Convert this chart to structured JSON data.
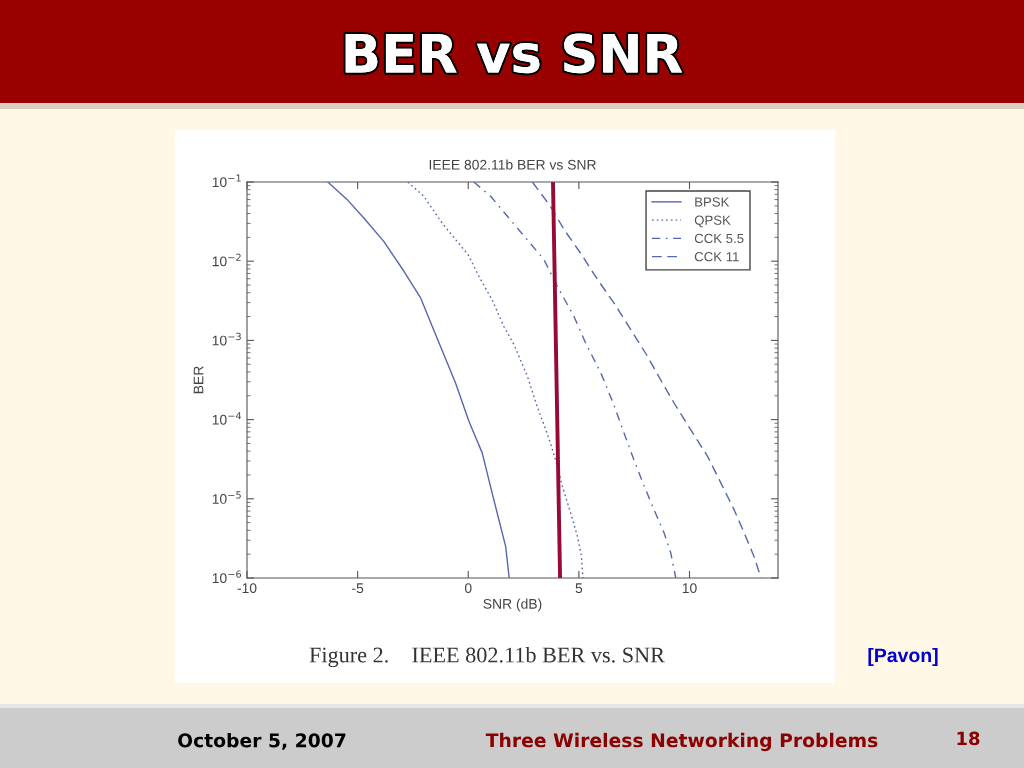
{
  "chart_data": {
    "type": "line",
    "title": "BER vs SNR",
    "subtitle": "IEEE 802.11b BER vs SNR",
    "xlabel": "SNR (dB)",
    "ylabel": "BER",
    "annotations": [
      "Figure 2.    IEEE 802.11b BER vs. SNR",
      "[Pavon]",
      "October 5, 2007",
      "Three Wireless Networking Problems",
      "18"
    ],
    "log": "y",
    "xlim": [
      -10,
      14
    ],
    "xticks": [
      -10,
      -5,
      0,
      5,
      10
    ],
    "ylim": [
      1e-06,
      0.1
    ],
    "yticks": [
      {
        "value": 1e-06,
        "label": "10$^{−6}$"
      },
      {
        "value": 1e-05,
        "label": "10$^{−5}$"
      },
      {
        "value": 0.0001,
        "label": "10$^{−4}$"
      },
      {
        "value": 0.001,
        "label": "10$^{−3}$"
      },
      {
        "value": 0.01,
        "label": "10$^{−2}$"
      },
      {
        "value": 0.1,
        "label": "10$^{−1}$"
      }
    ],
    "grid": false,
    "legend": "top right",
    "series": [
      {
        "name": "BPSK",
        "color": "#5566b0",
        "line_style": "solid",
        "x": [
          -6.35,
          -5.48,
          -4.72,
          -3.82,
          -2.9,
          -2.16,
          -1.63,
          -1.1,
          -0.57,
          0.03,
          0.63,
          1.1,
          1.69,
          1.85
        ],
        "values": [
          0.1,
          0.0603,
          0.0351,
          0.0178,
          0.00741,
          0.00347,
          0.00151,
          0.000661,
          0.000288,
          9.55e-05,
          3.8e-05,
          1.12e-05,
          2.51e-06,
          1e-06
        ]
      },
      {
        "name": "QPSK",
        "color": "#5566b0",
        "line_style": "dotted",
        "x": [
          -2.73,
          -2.01,
          -1.18,
          0.0,
          0.5,
          1.1,
          1.6,
          2.06,
          2.67,
          3.1,
          3.4,
          3.72,
          4.03,
          4.25,
          4.63,
          4.93,
          5.12,
          5.18
        ],
        "values": [
          0.1,
          0.0661,
          0.0302,
          0.012,
          0.00631,
          0.00316,
          0.00151,
          0.000891,
          0.000355,
          0.000151,
          8.91e-05,
          5.01e-05,
          2.57e-05,
          1.45e-05,
          6.61e-06,
          3.39e-06,
          1.86e-06,
          1e-06
        ]
      },
      {
        "name": "CCK 5.5",
        "color": "#5566b0",
        "line_style": "dashdot",
        "x": [
          0.25,
          1.01,
          1.76,
          2.67,
          3.42,
          4.03,
          4.78,
          5.3,
          5.99,
          6.55,
          6.95,
          7.49,
          7.95,
          8.4,
          8.85,
          9.15,
          9.38
        ],
        "values": [
          0.1,
          0.0661,
          0.0372,
          0.0186,
          0.0105,
          0.00479,
          0.002,
          0.000933,
          0.000389,
          0.000162,
          7.94e-05,
          3.09e-05,
          1.45e-05,
          7.24e-06,
          3.72e-06,
          2.09e-06,
          1e-06
        ]
      },
      {
        "name": "CCK 11",
        "color": "#5566b0",
        "line_style": "dashed",
        "x": [
          2.9,
          3.72,
          4.33,
          5.08,
          5.84,
          6.59,
          7.34,
          8.1,
          8.7,
          9.3,
          10.06,
          10.81,
          11.42,
          12.02,
          12.47,
          12.92,
          13.23
        ],
        "values": [
          0.1,
          0.049,
          0.0251,
          0.0126,
          0.00589,
          0.00295,
          0.00138,
          0.000631,
          0.000316,
          0.000162,
          7.41e-05,
          3.47e-05,
          1.58e-05,
          7.24e-06,
          3.72e-06,
          1.86e-06,
          1e-06
        ]
      },
      {
        "color": "#960a36",
        "line_style": "solid",
        "x": [
          3.83,
          4.15
        ],
        "values": [
          0.1,
          1e-06
        ]
      }
    ]
  }
}
